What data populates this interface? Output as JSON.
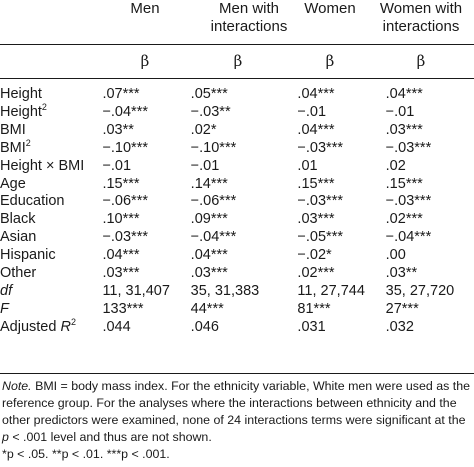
{
  "columns": [
    {
      "line1": "",
      "line2": "Men"
    },
    {
      "line1": "Men with",
      "line2": "interactions"
    },
    {
      "line1": "",
      "line2": "Women"
    },
    {
      "line1": "Women with",
      "line2": "interactions"
    }
  ],
  "beta": "β",
  "rows": [
    {
      "label": "Height",
      "sup": "",
      "values": [
        ".07***",
        ".05***",
        ".04***",
        ".04***"
      ]
    },
    {
      "label": "Height",
      "sup": "2",
      "values": [
        "−.04***",
        "−.03**",
        "−.01",
        "−.01"
      ]
    },
    {
      "label": "BMI",
      "sup": "",
      "values": [
        ".03**",
        ".02*",
        ".04***",
        ".03***"
      ]
    },
    {
      "label": "BMI",
      "sup": "2",
      "values": [
        "−.10***",
        "−.10***",
        "−.03***",
        "−.03***"
      ]
    },
    {
      "label": "Height × BMI",
      "sup": "",
      "values": [
        "−.01",
        "−.01",
        ".01",
        ".02"
      ]
    },
    {
      "label": "Age",
      "sup": "",
      "values": [
        ".15***",
        ".14***",
        ".15***",
        ".15***"
      ]
    },
    {
      "label": "Education",
      "sup": "",
      "values": [
        "−.06***",
        "−.06***",
        "−.03***",
        "−.03***"
      ]
    },
    {
      "label": "Black",
      "sup": "",
      "values": [
        ".10***",
        ".09***",
        ".03***",
        ".02***"
      ]
    },
    {
      "label": "Asian",
      "sup": "",
      "values": [
        "−.03***",
        "−.04***",
        "−.05***",
        "−.04***"
      ]
    },
    {
      "label": "Hispanic",
      "sup": "",
      "values": [
        ".04***",
        ".04***",
        "−.02*",
        ".00"
      ]
    },
    {
      "label": "Other",
      "sup": "",
      "values": [
        ".03***",
        ".03***",
        ".02***",
        ".03**"
      ]
    },
    {
      "label": "df",
      "sup": "",
      "italic": true,
      "values": [
        "11, 31,407",
        "35, 31,383",
        "11, 27,744",
        "35, 27,720"
      ]
    },
    {
      "label": "F",
      "sup": "",
      "italic": true,
      "values": [
        "133***",
        "44***",
        "81***",
        "27***"
      ]
    },
    {
      "label": "Adjusted R",
      "sup": "2",
      "italicR": true,
      "values": [
        ".044",
        ".046",
        ".031",
        ".032"
      ]
    }
  ],
  "note": {
    "lead": "Note.",
    "text1": " BMI = body mass index. For the ethnicity variable, White men were used as the reference group. For the analyses where the interactions between ethnicity and the other predictors were examined, none of 24 interactions terms were significant at the ",
    "p": "p",
    "text2": " < .001 level and thus are not shown.",
    "sig": "*p < .05. **p < .01. ***p < .001."
  }
}
